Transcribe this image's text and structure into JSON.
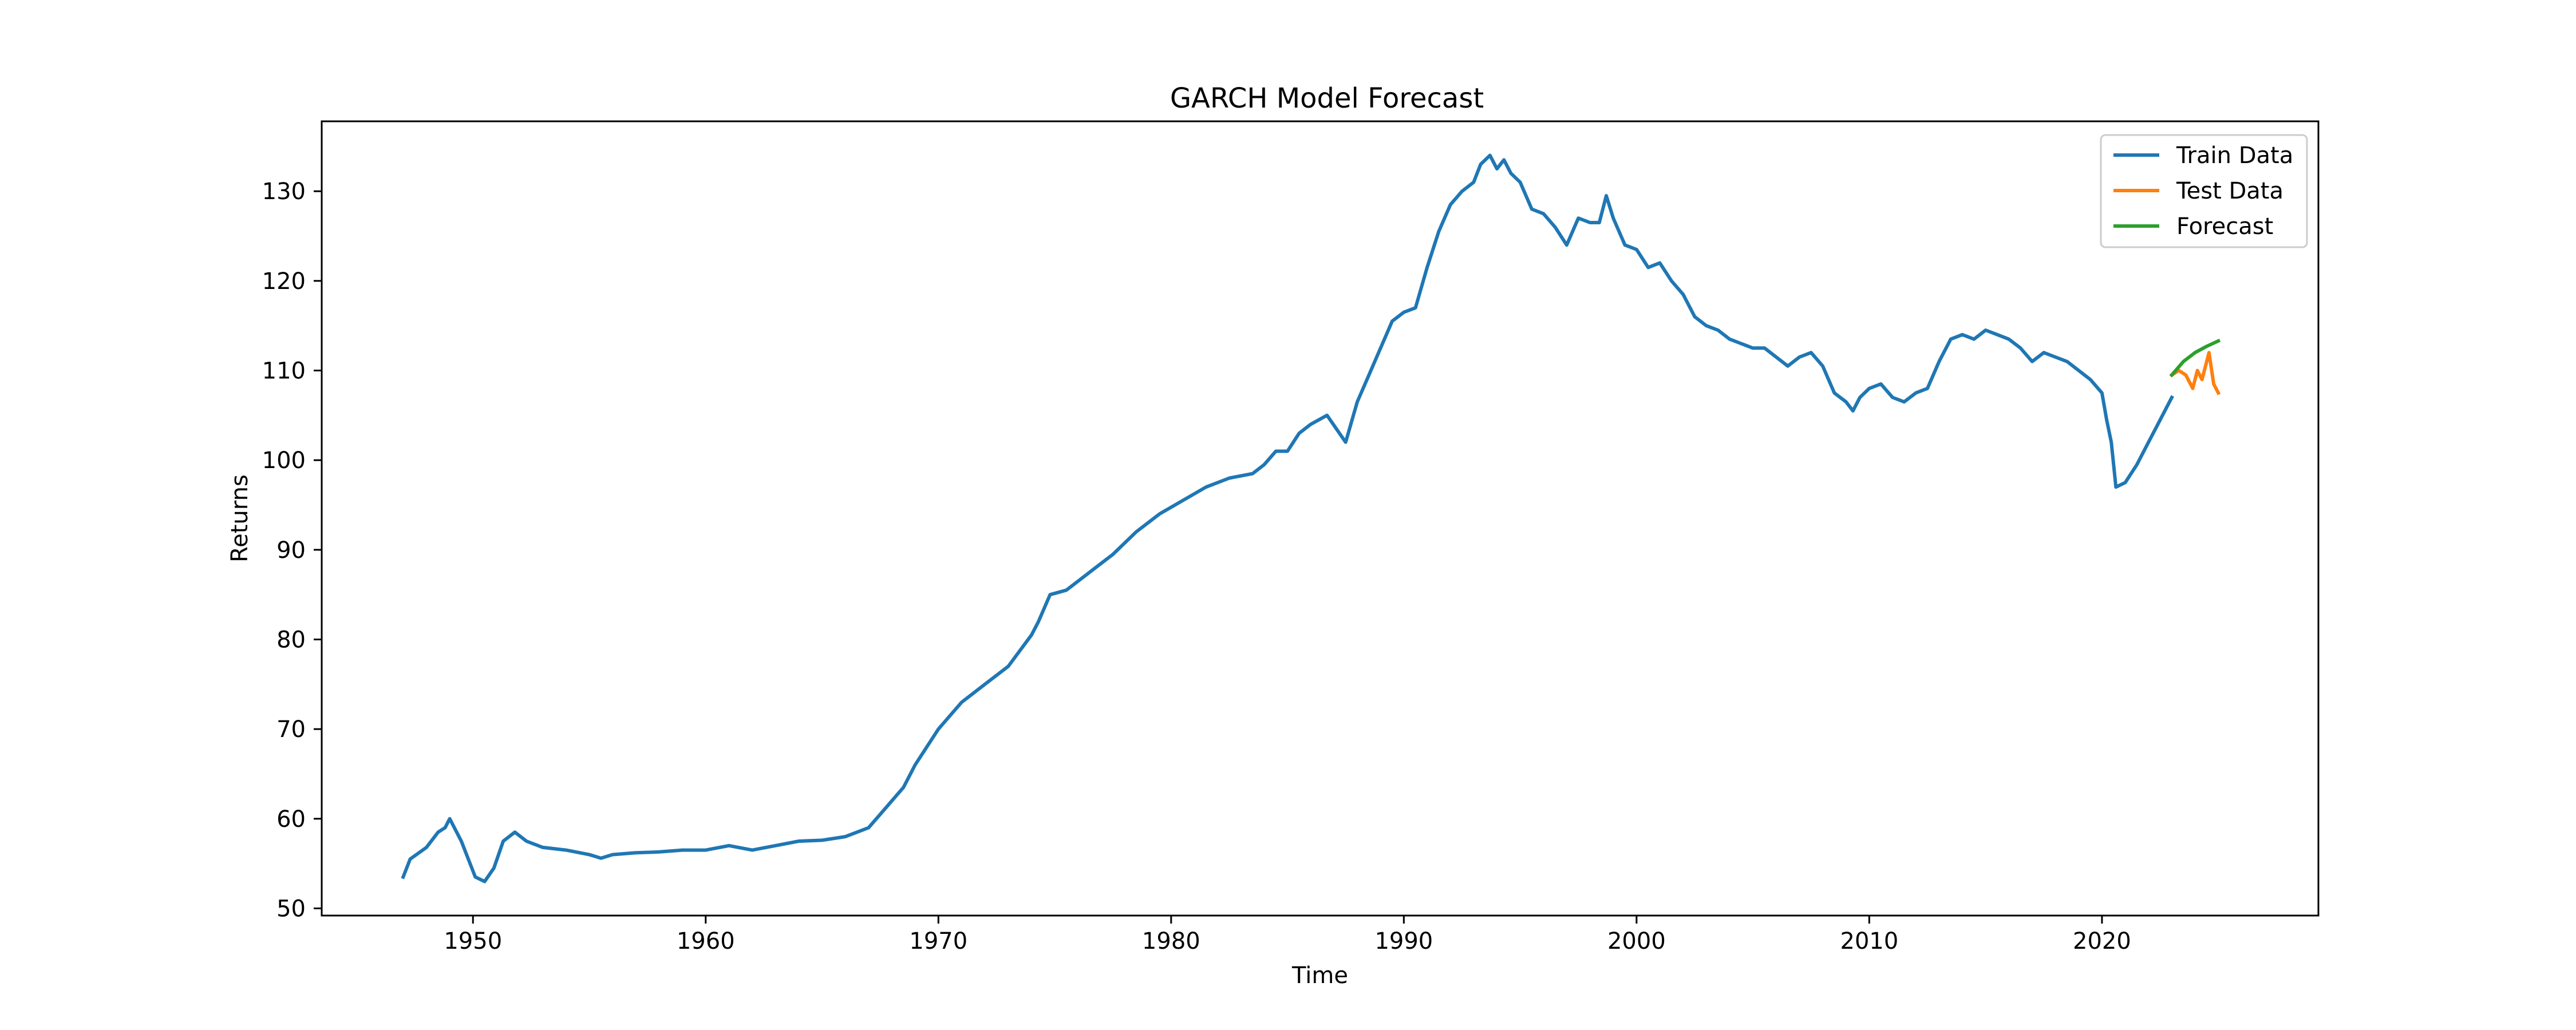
{
  "chart_data": {
    "type": "line",
    "title": "GARCH Model Forecast",
    "xlabel": "Time",
    "ylabel": "Returns",
    "xlim": [
      1943.5,
      2029.3
    ],
    "ylim": [
      49.2,
      137.8
    ],
    "xticks": [
      1950,
      1960,
      1970,
      1980,
      1990,
      2000,
      2010,
      2020
    ],
    "yticks": [
      50,
      60,
      70,
      80,
      90,
      100,
      110,
      120,
      130
    ],
    "legend_placement": "top-right",
    "grid": false,
    "series": [
      {
        "name": "Train Data",
        "color": "#1f77b4",
        "x": [
          1947.0,
          1947.3,
          1948.0,
          1948.5,
          1948.8,
          1949.0,
          1949.5,
          1949.8,
          1950.1,
          1950.5,
          1950.9,
          1951.3,
          1951.8,
          1952.3,
          1953.0,
          1954.0,
          1955.0,
          1955.5,
          1956.0,
          1957.0,
          1958.0,
          1959.0,
          1960.0,
          1961.0,
          1962.0,
          1963.0,
          1964.0,
          1965.0,
          1966.0,
          1966.5,
          1967.0,
          1967.5,
          1968.0,
          1968.5,
          1969.0,
          1970.0,
          1971.0,
          1972.0,
          1973.0,
          1974.0,
          1974.3,
          1974.8,
          1975.5,
          1976.5,
          1977.5,
          1978.5,
          1979.5,
          1980.5,
          1981.5,
          1982.5,
          1983.5,
          1984.0,
          1984.5,
          1985.0,
          1985.5,
          1986.0,
          1986.7,
          1987.5,
          1988.0,
          1988.5,
          1989.0,
          1989.5,
          1990.0,
          1990.5,
          1991.0,
          1991.5,
          1992.0,
          1992.5,
          1993.0,
          1993.3,
          1993.7,
          1994.0,
          1994.3,
          1994.6,
          1995.0,
          1995.5,
          1996.0,
          1996.5,
          1997.0,
          1997.5,
          1998.0,
          1998.4,
          1998.7,
          1999.0,
          1999.5,
          2000.0,
          2000.5,
          2001.0,
          2001.5,
          2002.0,
          2002.5,
          2003.0,
          2003.5,
          2004.0,
          2004.5,
          2005.0,
          2005.5,
          2006.0,
          2006.5,
          2007.0,
          2007.5,
          2008.0,
          2008.5,
          2009.0,
          2009.3,
          2009.6,
          2010.0,
          2010.5,
          2011.0,
          2011.5,
          2012.0,
          2012.5,
          2013.0,
          2013.5,
          2014.0,
          2014.5,
          2015.0,
          2015.5,
          2016.0,
          2016.5,
          2017.0,
          2017.5,
          2018.0,
          2018.5,
          2019.0,
          2019.5,
          2020.0,
          2020.2,
          2020.4,
          2020.6,
          2021.0,
          2021.5,
          2022.0,
          2022.5,
          2023.0
        ],
        "y": [
          53.5,
          55.5,
          56.8,
          58.5,
          59.0,
          60.0,
          57.5,
          55.5,
          53.5,
          53.0,
          54.5,
          57.5,
          58.5,
          57.5,
          56.8,
          56.5,
          56.0,
          55.6,
          56.0,
          56.2,
          56.3,
          56.5,
          56.5,
          57.0,
          56.5,
          57.0,
          57.5,
          57.6,
          58.0,
          58.5,
          59.0,
          60.5,
          62.0,
          63.5,
          66.0,
          70.0,
          73.0,
          75.0,
          77.0,
          80.5,
          82.0,
          85.0,
          85.5,
          87.5,
          89.5,
          92.0,
          94.0,
          95.5,
          97.0,
          98.0,
          98.5,
          99.5,
          101.0,
          101.0,
          103.0,
          104.0,
          105.0,
          102.0,
          106.5,
          109.5,
          112.5,
          115.5,
          116.5,
          117.0,
          121.5,
          125.5,
          128.5,
          130.0,
          131.0,
          133.0,
          134.0,
          132.5,
          133.5,
          132.0,
          131.0,
          128.0,
          127.5,
          126.0,
          124.0,
          127.0,
          126.5,
          126.5,
          129.5,
          127.0,
          124.0,
          123.5,
          121.5,
          122.0,
          120.0,
          118.5,
          116.0,
          115.0,
          114.5,
          113.5,
          113.0,
          112.5,
          112.5,
          111.5,
          110.5,
          111.5,
          112.0,
          110.5,
          107.5,
          106.5,
          105.5,
          107.0,
          108.0,
          108.5,
          107.0,
          106.5,
          107.5,
          108.0,
          111.0,
          113.5,
          114.0,
          113.5,
          114.5,
          114.0,
          113.5,
          112.5,
          111.0,
          112.0,
          111.5,
          111.0,
          110.0,
          109.0,
          107.5,
          104.5,
          102.0,
          97.0,
          97.5,
          99.5,
          102.0,
          104.5,
          107.0
        ]
      },
      {
        "name": "Test Data",
        "color": "#ff7f0e",
        "x": [
          2023.0,
          2023.3,
          2023.6,
          2023.9,
          2024.1,
          2024.3,
          2024.6,
          2024.8,
          2025.0
        ],
        "y": [
          109.5,
          110.0,
          109.5,
          108.0,
          110.0,
          109.0,
          112.0,
          108.5,
          107.5
        ]
      },
      {
        "name": "Forecast",
        "color": "#2ca02c",
        "x": [
          2023.0,
          2023.5,
          2024.0,
          2024.5,
          2025.0
        ],
        "y": [
          109.5,
          111.0,
          112.0,
          112.7,
          113.3
        ]
      }
    ]
  }
}
